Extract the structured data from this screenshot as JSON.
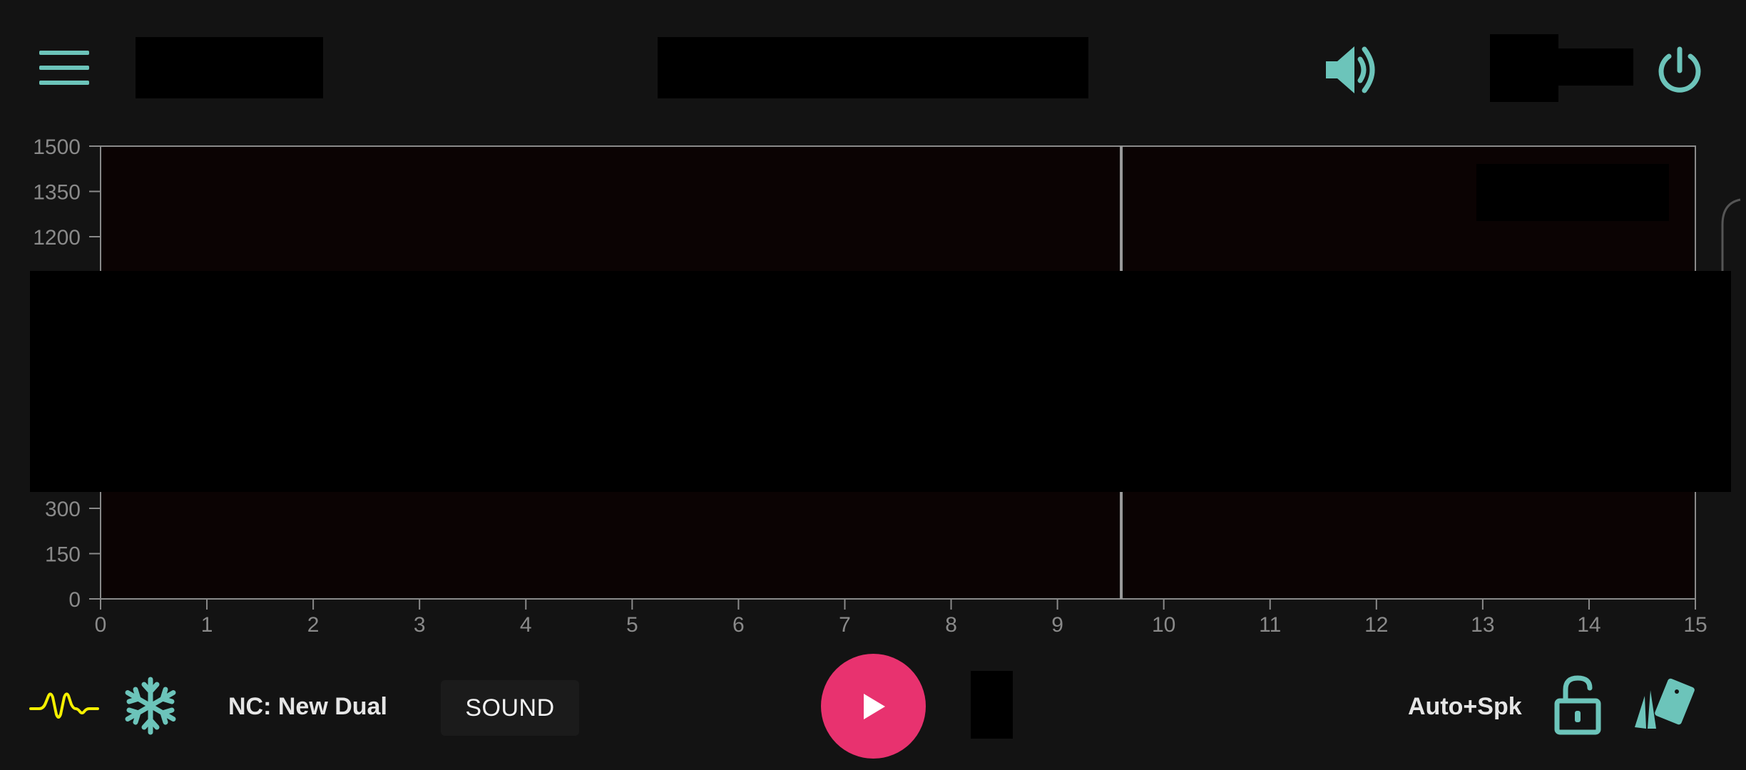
{
  "colors": {
    "background": "#131313",
    "accent": "#6cc4ba",
    "plot_background": "#0b0303",
    "axis": "#8a8a8a",
    "play": "#e8326f",
    "waveform": "#f5f000"
  },
  "icons": {
    "menu": "menu-icon",
    "volume": "volume-icon",
    "power": "power-icon",
    "waveform": "waveform-icon",
    "freeze": "snowflake-icon",
    "play": "play-icon",
    "lock": "unlock-icon",
    "cards": "cards-icon"
  },
  "chart_data": {
    "type": "heatmap",
    "x_ticks": [
      "0",
      "1",
      "2",
      "3",
      "4",
      "5",
      "6",
      "7",
      "8",
      "9",
      "10",
      "11",
      "12",
      "13",
      "14",
      "15"
    ],
    "y_ticks_visible": [
      "0",
      "150",
      "300",
      "1200",
      "1350",
      "1500"
    ],
    "xlim": [
      0,
      15
    ],
    "ylim": [
      0,
      1500
    ],
    "cursor_x": 9.6
  },
  "bottom_bar": {
    "nc_label": "NC: New Dual",
    "sound_label": "SOUND",
    "mode_label": "Auto+Spk"
  }
}
